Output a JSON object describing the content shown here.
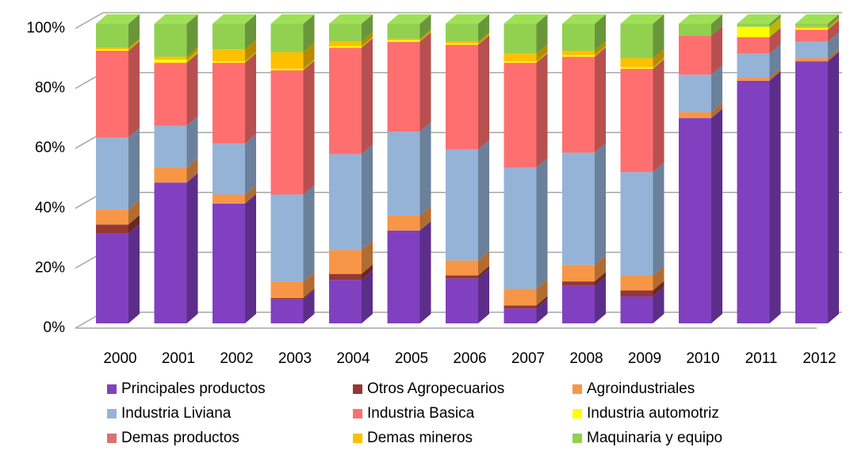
{
  "chart_data": {
    "type": "bar",
    "stacked": true,
    "categories": [
      "2000",
      "2001",
      "2002",
      "2003",
      "2004",
      "2005",
      "2006",
      "2007",
      "2008",
      "2009",
      "2010",
      "2011",
      "2012"
    ],
    "series": [
      {
        "name": "Principales productos",
        "color": "#8040c0",
        "values": [
          30,
          47,
          40,
          8,
          14.5,
          31,
          15,
          5,
          12.5,
          9,
          68.5,
          81,
          87.5
        ]
      },
      {
        "name": "Otros Agropecuarios",
        "color": "#953735",
        "values": [
          3,
          0,
          0,
          0.5,
          2,
          0,
          1,
          1,
          1.5,
          2,
          0,
          0,
          0
        ]
      },
      {
        "name": "Agroindustriales",
        "color": "#f79646",
        "values": [
          5,
          5,
          3,
          5.5,
          8,
          5,
          5,
          5.5,
          5.5,
          5,
          2,
          1,
          1
        ]
      },
      {
        "name": "Industria Liviana",
        "color": "#95b3d7",
        "values": [
          24,
          14,
          17,
          29,
          32,
          28,
          37,
          40.5,
          37.5,
          34.5,
          12.5,
          8,
          5.5
        ]
      },
      {
        "name": "Industria Basica",
        "color": "#ff6f6f",
        "values": [
          29,
          21,
          27,
          41.5,
          35.5,
          30,
          35,
          35,
          32,
          34.5,
          13,
          5.5,
          4
        ]
      },
      {
        "name": "Industria automotriz",
        "color": "#ffff00",
        "values": [
          0.5,
          1,
          0.5,
          0.5,
          0.5,
          0.5,
          0.5,
          0.5,
          0.5,
          0.5,
          0,
          3.5,
          0.5
        ]
      },
      {
        "name": "Demas productos",
        "color": "#d9736f",
        "values": [
          0,
          0,
          0,
          0,
          0,
          0,
          0,
          0,
          0,
          0,
          0,
          0,
          0
        ]
      },
      {
        "name": "Demas mineros",
        "color": "#ffc000",
        "values": [
          0.5,
          1,
          4,
          5.5,
          1.5,
          0.5,
          0.5,
          2.5,
          1.5,
          3,
          0,
          0,
          0.5
        ]
      },
      {
        "name": "Maquinaria y equipo",
        "color": "#92d050",
        "values": [
          8,
          11,
          8.5,
          9.5,
          6,
          5,
          6,
          10,
          9,
          11.5,
          4,
          1,
          1
        ]
      }
    ],
    "ylim": [
      0,
      100
    ],
    "yticks": [
      {
        "value": 0,
        "label": "0%"
      },
      {
        "value": 20,
        "label": "20%"
      },
      {
        "value": 40,
        "label": "40%"
      },
      {
        "value": 60,
        "label": "60%"
      },
      {
        "value": 80,
        "label": "80%"
      },
      {
        "value": 100,
        "label": "100%"
      }
    ],
    "grid": true,
    "legend": "bottom"
  }
}
